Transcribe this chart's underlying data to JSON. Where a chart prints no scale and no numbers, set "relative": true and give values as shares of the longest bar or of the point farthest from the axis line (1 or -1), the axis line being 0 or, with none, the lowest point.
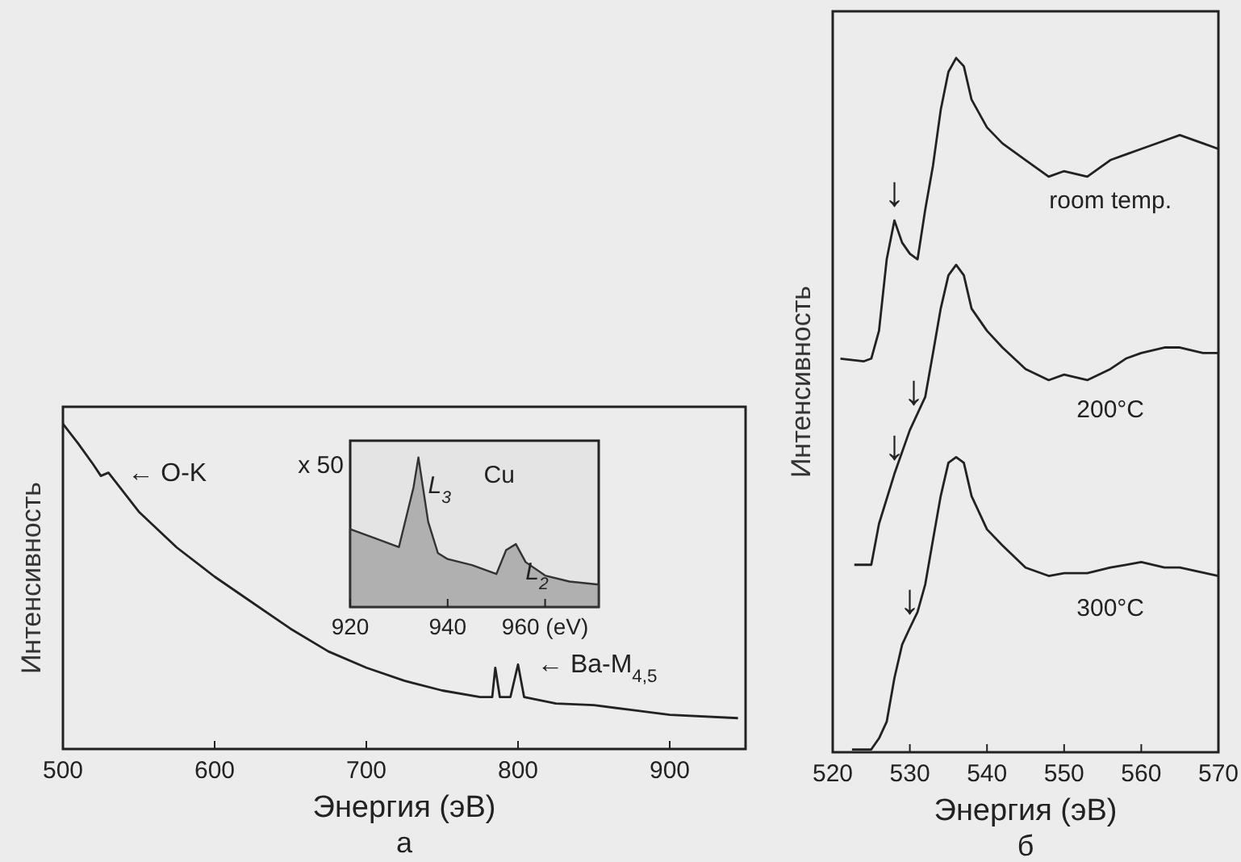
{
  "chart_data": [
    {
      "type": "line",
      "title": "а",
      "xlabel": "Энергия (эВ)",
      "ylabel": "Интенсивность",
      "relative": true,
      "xlim": [
        500,
        950
      ],
      "xticks": [
        500,
        600,
        700,
        800,
        900
      ],
      "color": "#222222",
      "tick_labels": "x",
      "x": [
        500,
        510,
        520,
        525,
        530,
        535,
        550,
        575,
        600,
        625,
        650,
        675,
        700,
        725,
        750,
        775,
        783,
        785,
        788,
        795,
        800,
        804,
        825,
        850,
        875,
        900,
        945
      ],
      "values": [
        1.0,
        0.94,
        0.875,
        0.84,
        0.85,
        0.82,
        0.73,
        0.62,
        0.53,
        0.45,
        0.37,
        0.3,
        0.25,
        0.21,
        0.18,
        0.16,
        0.16,
        0.25,
        0.16,
        0.16,
        0.26,
        0.16,
        0.14,
        0.135,
        0.12,
        0.105,
        0.095
      ],
      "annotations": [
        {
          "text": "← O-K",
          "x": 530,
          "y": 0.85
        },
        {
          "text": "← Ba-M$_{4,5}$",
          "x": 800,
          "y": 0.26
        }
      ]
    },
    {
      "type": "area",
      "relative": true,
      "xlim": [
        920,
        971
      ],
      "xticks": [
        920,
        940,
        {
          "value": 960,
          "label": "960 (eV)"
        }
      ],
      "color": "#9a9a9a",
      "tick_labels": "x",
      "x": [
        920,
        925,
        930,
        933,
        934,
        936,
        938,
        940,
        945,
        950,
        952,
        954,
        956,
        960,
        965,
        971
      ],
      "values": [
        0.52,
        0.46,
        0.4,
        0.8,
        1.0,
        0.57,
        0.36,
        0.32,
        0.28,
        0.22,
        0.38,
        0.42,
        0.3,
        0.21,
        0.17,
        0.15
      ],
      "annotations": [
        "x 50",
        "Cu",
        {
          "text": "L$_{3}$",
          "x": 934,
          "y": 1.0
        },
        {
          "text": "L$_{2}$",
          "x": 954,
          "y": 0.42
        }
      ]
    },
    {
      "type": "line",
      "title": "б",
      "xlabel": "Энергия (эВ)",
      "ylabel": "Интенсивность",
      "relative": true,
      "xlim": [
        520,
        570
      ],
      "xticks": [
        520,
        530,
        540,
        550,
        560,
        570
      ],
      "tick_labels": "x",
      "series": [
        {
          "name": "room temp.",
          "color": "#222222",
          "x": [
            521,
            524,
            525,
            526,
            527,
            528,
            529,
            530,
            531,
            532,
            533,
            534,
            535,
            536,
            537,
            538,
            540,
            542,
            545,
            548,
            550,
            553,
            556,
            558,
            560,
            563,
            565,
            568,
            570
          ],
          "values": [
            0.567,
            0.563,
            0.567,
            0.607,
            0.71,
            0.766,
            0.734,
            0.718,
            0.71,
            0.782,
            0.845,
            0.925,
            0.98,
            1.0,
            0.988,
            0.94,
            0.9,
            0.877,
            0.853,
            0.829,
            0.837,
            0.829,
            0.853,
            0.861,
            0.869,
            0.881,
            0.889,
            0.877,
            0.869
          ]
        },
        {
          "name": "200°C",
          "color": "#222222",
          "x": [
            522.8,
            525,
            526,
            528,
            530,
            532,
            533,
            534,
            535,
            536,
            537,
            538,
            540,
            542,
            545,
            548,
            550,
            553,
            556,
            558,
            560,
            563,
            565,
            568,
            570
          ],
          "values": [
            0.27,
            0.27,
            0.329,
            0.401,
            0.464,
            0.512,
            0.575,
            0.639,
            0.687,
            0.702,
            0.687,
            0.639,
            0.607,
            0.583,
            0.552,
            0.536,
            0.544,
            0.536,
            0.552,
            0.567,
            0.575,
            0.583,
            0.583,
            0.575,
            0.575
          ]
        },
        {
          "name": "300°C",
          "color": "#222222",
          "x": [
            522.5,
            525,
            526,
            527,
            528,
            529,
            530,
            531,
            532,
            533,
            534,
            535,
            536,
            537,
            538,
            540,
            542,
            545,
            548,
            550,
            553,
            556,
            558,
            560,
            563,
            565,
            570
          ],
          "values": [
            0.004,
            0.004,
            0.02,
            0.044,
            0.107,
            0.155,
            0.179,
            0.202,
            0.242,
            0.306,
            0.369,
            0.417,
            0.425,
            0.417,
            0.369,
            0.321,
            0.298,
            0.266,
            0.254,
            0.258,
            0.258,
            0.266,
            0.27,
            0.274,
            0.266,
            0.266,
            0.254
          ]
        }
      ],
      "annotations": [
        {
          "text": "↓",
          "x": 528,
          "y": 0.766
        },
        {
          "text": "↓",
          "x": 528,
          "y": 0.401
        },
        {
          "text": "↓",
          "x": 530.5,
          "y": 0.48
        },
        {
          "text": "↓",
          "x": 530,
          "y": 0.179
        }
      ]
    }
  ]
}
